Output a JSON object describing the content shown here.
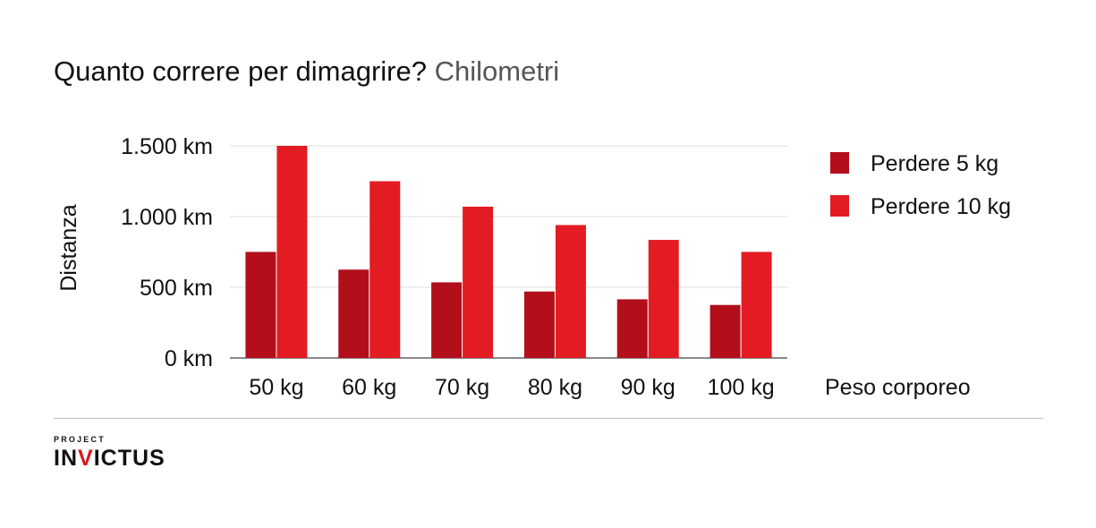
{
  "title": {
    "main": "Quanto correre per dimagrire?",
    "sub": "Chilometri"
  },
  "brand": {
    "small": "PROJECT",
    "big_pre": "IN",
    "big_accent": "V",
    "big_post": "ICTUS"
  },
  "colors": {
    "series1": "#b20f1b",
    "series2": "#e31b23",
    "grid": "#dddddd",
    "axis": "#444444"
  },
  "chart_data": {
    "type": "bar",
    "xlabel": "Peso corporeo",
    "ylabel": "Distanza",
    "categories": [
      "50 kg",
      "60 kg",
      "70 kg",
      "80 kg",
      "90 kg",
      "100 kg"
    ],
    "yticks": [
      0,
      500,
      1000,
      1500
    ],
    "ytick_labels": [
      "0 km",
      "500 km",
      "1.000 km",
      "1.500 km"
    ],
    "ylim": [
      0,
      1500
    ],
    "grid": true,
    "legend_position": "right",
    "series": [
      {
        "name": "Perdere 5 kg",
        "values": [
          750,
          625,
          535,
          470,
          415,
          375
        ]
      },
      {
        "name": "Perdere 10 kg",
        "values": [
          1500,
          1250,
          1070,
          940,
          835,
          750
        ]
      }
    ]
  }
}
